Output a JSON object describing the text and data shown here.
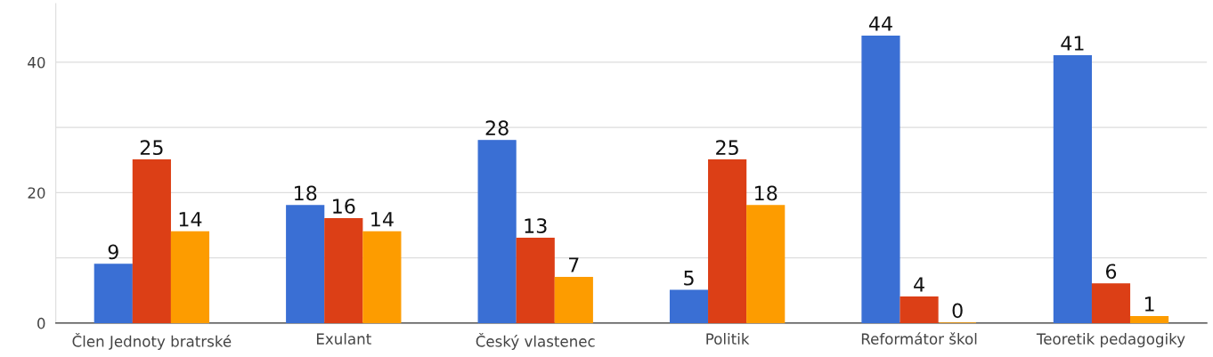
{
  "chart_data": {
    "type": "bar",
    "categories": [
      "Člen Jednoty bratrské",
      "Exulant",
      "Český vlastenec",
      "Politik",
      "Reformátor škol",
      "Teoretik pedagogiky"
    ],
    "series": [
      {
        "color": "#3a6fd4",
        "values": [
          9,
          18,
          28,
          5,
          44,
          41
        ]
      },
      {
        "color": "#dc3f16",
        "values": [
          25,
          16,
          13,
          25,
          4,
          6
        ]
      },
      {
        "color": "#fd9c00",
        "values": [
          14,
          14,
          7,
          18,
          0,
          1
        ]
      }
    ],
    "ylim": [
      0,
      49
    ],
    "yticks": [
      0,
      {
        "value": 10,
        "label": null
      },
      20,
      {
        "value": 30,
        "label": null
      },
      40
    ],
    "grid": "y",
    "data_labels": true,
    "legend": false
  }
}
